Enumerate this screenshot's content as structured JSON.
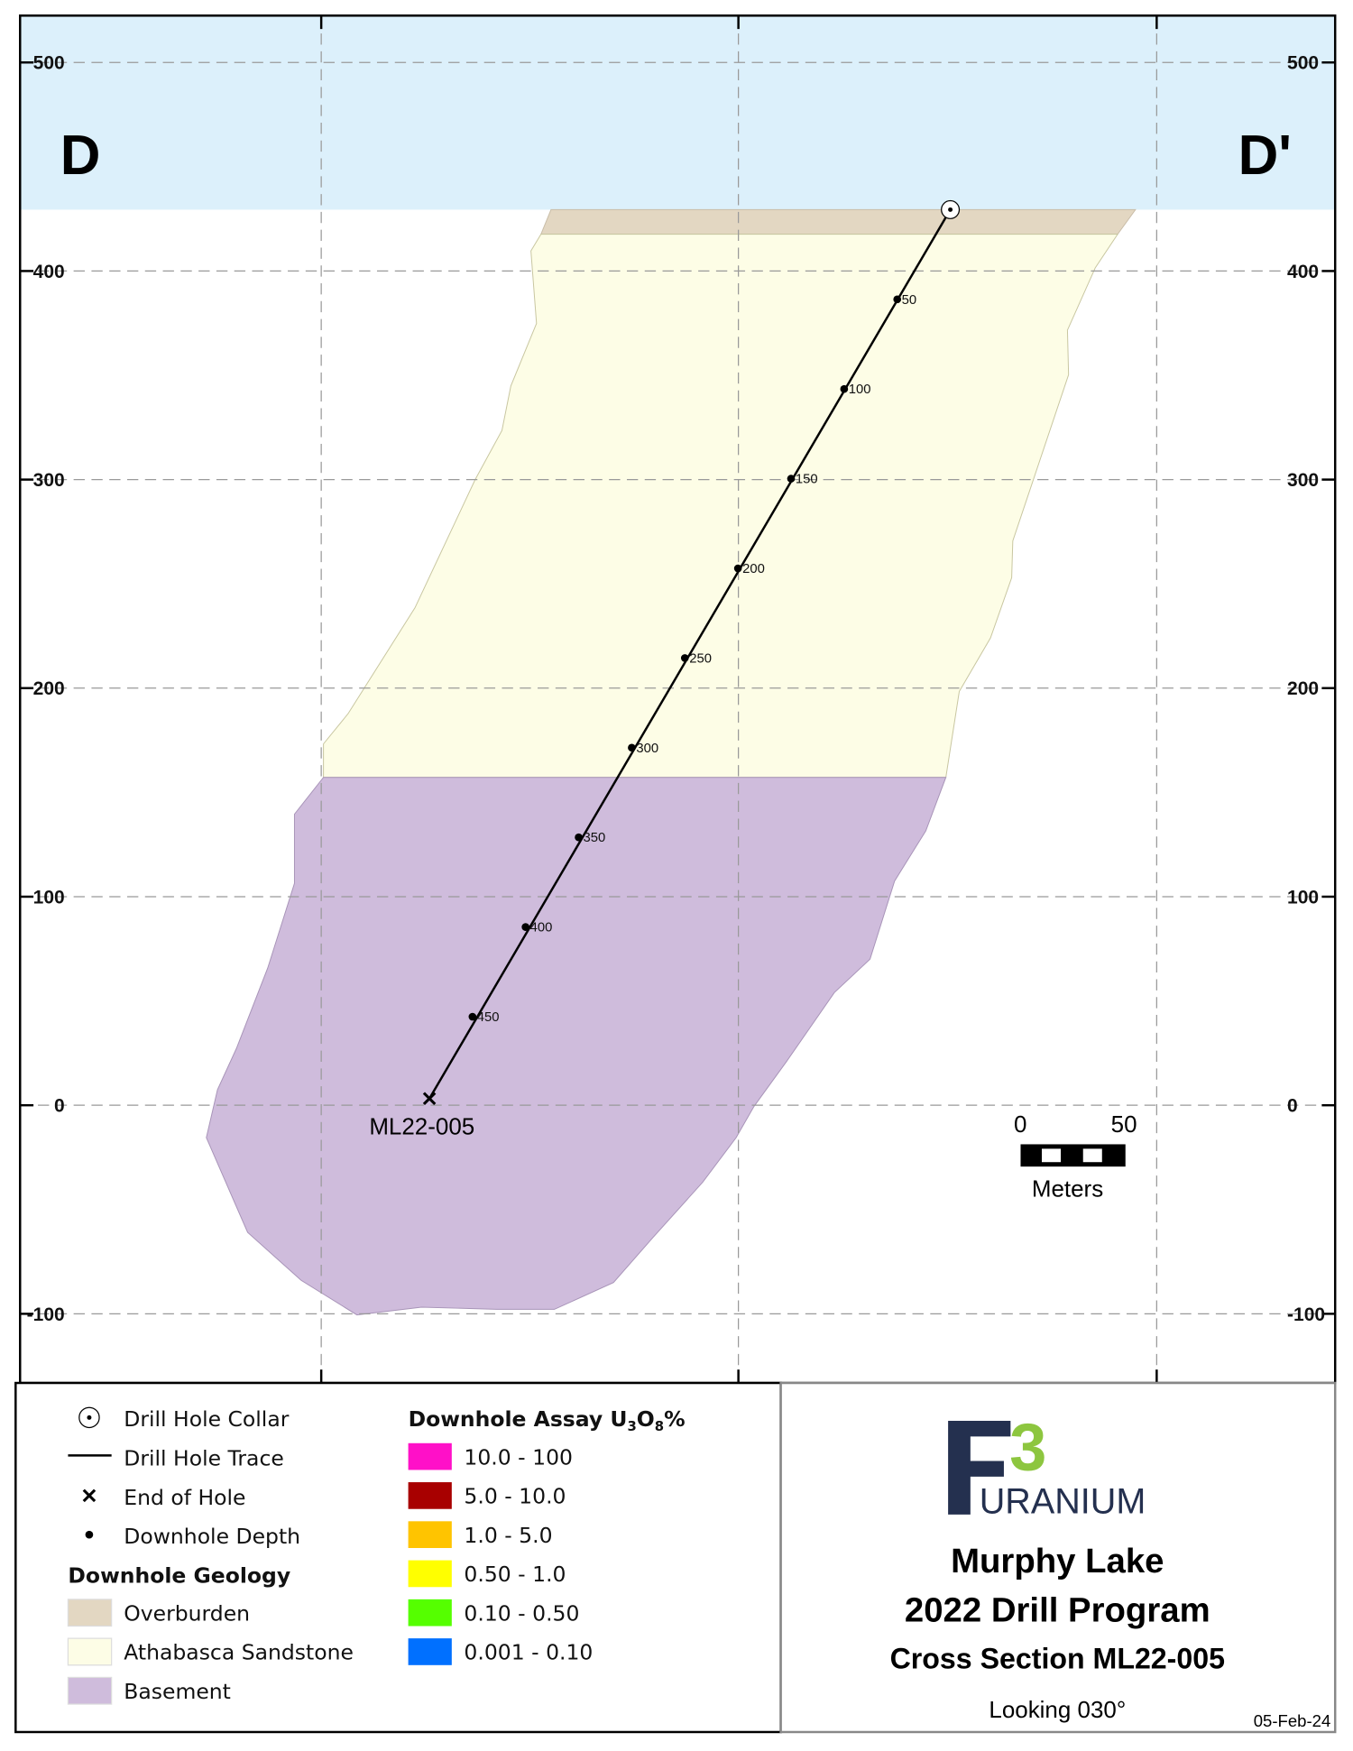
{
  "section_labels": {
    "left": "D",
    "right": "D'"
  },
  "axis": {
    "elevations": [
      "500",
      "400",
      "300",
      "200",
      "100",
      "0",
      "-100"
    ]
  },
  "drill_hole": {
    "name": "ML22-005",
    "depth_markers": [
      "50",
      "100",
      "150",
      "200",
      "250",
      "300",
      "350",
      "400",
      "450"
    ]
  },
  "scale_bar": {
    "start": "0",
    "end": "50",
    "unit": "Meters"
  },
  "legend": {
    "symbols": [
      "Drill Hole Collar",
      "Drill Hole Trace",
      "End of Hole",
      "Downhole Depth"
    ],
    "geology_title": "Downhole Geology",
    "geology": [
      {
        "label": "Overburden",
        "color": "#e3d7c2"
      },
      {
        "label": "Athabasca Sandstone",
        "color": "#fdfde6"
      },
      {
        "label": "Basement",
        "color": "#cfbcdc"
      }
    ],
    "assay_title_prefix": "Downhole Assay U",
    "assay_sub1": "3",
    "assay_mid": "O",
    "assay_sub2": "8",
    "assay_suffix": "%",
    "assay": [
      {
        "label": "10.0 - 100",
        "color": "#ff10c8"
      },
      {
        "label": "5.0 - 10.0",
        "color": "#a80000"
      },
      {
        "label": "1.0 - 5.0",
        "color": "#ffc400"
      },
      {
        "label": "0.50 - 1.0",
        "color": "#ffff00"
      },
      {
        "label": "0.10 - 0.50",
        "color": "#55ff00"
      },
      {
        "label": "0.001 - 0.10",
        "color": "#0070ff"
      }
    ]
  },
  "title_block": {
    "logo_letter": "F",
    "logo_number": "3",
    "logo_word": "URANIUM",
    "project": "Murphy Lake",
    "program": "2022 Drill Program",
    "section": "Cross Section ML22-005",
    "looking": "Looking 030°",
    "date": "05-Feb-24"
  }
}
